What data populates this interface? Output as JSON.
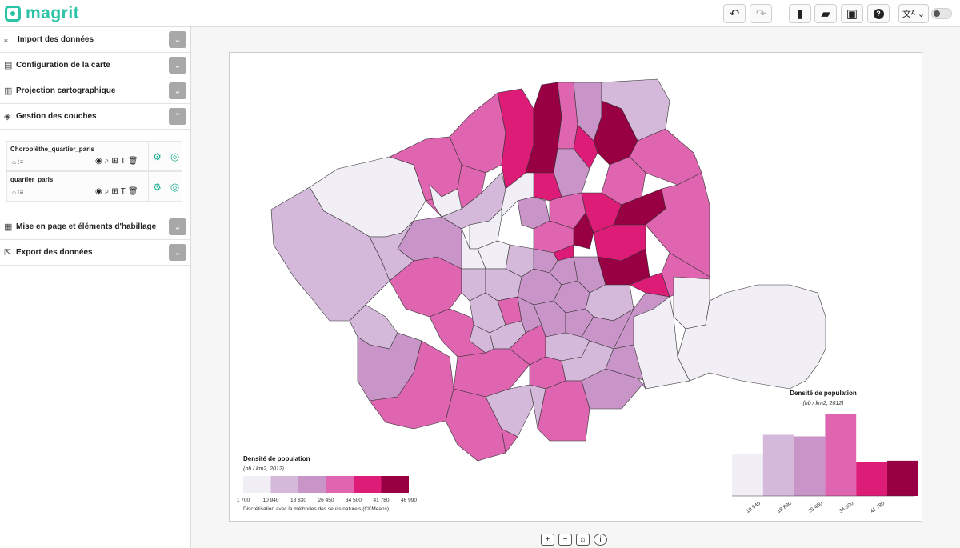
{
  "app": {
    "name": "magrit"
  },
  "toolbar": {
    "undo_icon": "undo-icon",
    "redo_icon": "redo-icon",
    "new_icon": "new-file-icon",
    "open_icon": "folder-open-icon",
    "save_icon": "save-icon",
    "help_icon": "help-icon",
    "lang_icon": "translate-icon",
    "theme_icon": "theme-toggle-icon"
  },
  "sidebar": {
    "sections": [
      {
        "label": "Import des données",
        "icon": "import-icon",
        "open": false
      },
      {
        "label": "Configuration de la carte",
        "icon": "map-config-icon",
        "open": false
      },
      {
        "label": "Projection cartographique",
        "icon": "projection-icon",
        "open": false
      },
      {
        "label": "Gestion des couches",
        "icon": "layers-icon",
        "open": true
      },
      {
        "label": "Mise en page et éléments d'habillage",
        "icon": "layout-icon",
        "open": false
      },
      {
        "label": "Export des données",
        "icon": "export-icon",
        "open": false
      }
    ],
    "layers": [
      {
        "name": "Choroplèthe_quartier_paris"
      },
      {
        "name": "quartier_paris"
      }
    ]
  },
  "legend": {
    "title": "Densité de population",
    "subtitle": "(hb / km2, 2012)",
    "breaks": [
      "1 700",
      "10 940",
      "18 830",
      "26 450",
      "34 500",
      "41 780",
      "46 990"
    ],
    "note": "Discrétisation avec la méthodes des seuils naturels (CKMeans)"
  },
  "colors": {
    "classes": [
      "#f1eef6",
      "#d4b9da",
      "#c994c7",
      "#df65b0",
      "#dd1c77",
      "#980043"
    ],
    "accent": "#2ac3a6",
    "border": "#333333"
  },
  "chart_data": {
    "type": "bar",
    "title": "Densité de population",
    "subtitle": "(hb / km2, 2012)",
    "categories": [
      "1 700–10 940",
      "10 940–18 830",
      "18 830–26 450",
      "26 450–34 500",
      "34 500–41 780",
      "41 780–46 990"
    ],
    "tick_labels": [
      "10 940",
      "18 830",
      "26 450",
      "34 500",
      "41 780"
    ],
    "values": [
      54,
      78,
      76,
      105,
      43,
      45
    ],
    "colors": [
      "#f1eef6",
      "#d4b9da",
      "#c994c7",
      "#df65b0",
      "#dd1c77",
      "#980043"
    ]
  }
}
